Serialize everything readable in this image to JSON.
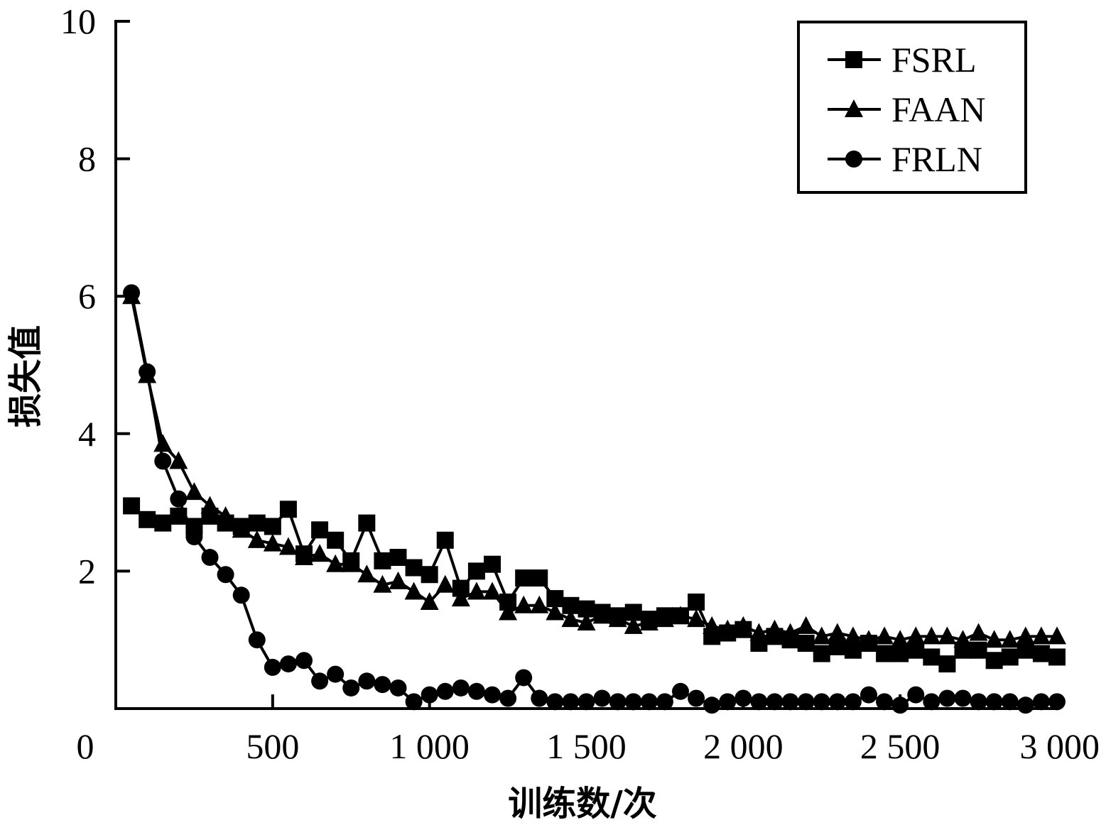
{
  "chart_data": {
    "type": "line",
    "title": "",
    "xlabel": "训练数/次",
    "ylabel": "损失值",
    "xlim": [
      0,
      3000
    ],
    "ylim": [
      0,
      10
    ],
    "x_origin_label": "0",
    "x_ticks": [
      500,
      1000,
      1500,
      2000,
      2500,
      3000
    ],
    "x_tick_labels": [
      "500",
      "1 000",
      "1 500",
      "2 000",
      "2 500",
      "3 000"
    ],
    "y_ticks": [
      2,
      4,
      6,
      8,
      10
    ],
    "y_tick_labels": [
      "2",
      "4",
      "6",
      "8",
      "10"
    ],
    "grid": false,
    "legend_position": "top-right",
    "x": [
      50,
      100,
      150,
      200,
      250,
      300,
      350,
      400,
      450,
      500,
      550,
      600,
      650,
      700,
      750,
      800,
      850,
      900,
      950,
      1000,
      1050,
      1100,
      1150,
      1200,
      1250,
      1300,
      1350,
      1400,
      1450,
      1500,
      1550,
      1600,
      1650,
      1700,
      1750,
      1800,
      1850,
      1900,
      1950,
      2000,
      2050,
      2100,
      2150,
      2200,
      2250,
      2300,
      2350,
      2400,
      2450,
      2500,
      2550,
      2600,
      2650,
      2700,
      2750,
      2800,
      2850,
      2900,
      2950,
      3000
    ],
    "series": [
      {
        "name": "FSRL",
        "marker": "square",
        "values": [
          2.95,
          2.75,
          2.7,
          2.8,
          2.65,
          2.8,
          2.7,
          2.65,
          2.7,
          2.65,
          2.9,
          2.25,
          2.6,
          2.45,
          2.15,
          2.7,
          2.15,
          2.2,
          2.05,
          1.95,
          2.45,
          1.75,
          2.0,
          2.1,
          1.55,
          1.9,
          1.9,
          1.6,
          1.5,
          1.45,
          1.4,
          1.35,
          1.4,
          1.3,
          1.35,
          1.35,
          1.55,
          1.05,
          1.1,
          1.15,
          0.95,
          1.05,
          1.0,
          0.95,
          0.8,
          0.9,
          0.85,
          0.95,
          0.8,
          0.8,
          0.85,
          0.75,
          0.65,
          0.85,
          0.85,
          0.7,
          0.75,
          0.85,
          0.8,
          0.75
        ]
      },
      {
        "name": "FAAN",
        "marker": "triangle",
        "values": [
          6.0,
          4.85,
          3.85,
          3.6,
          3.15,
          2.95,
          2.8,
          2.6,
          2.45,
          2.4,
          2.35,
          2.2,
          2.25,
          2.1,
          2.1,
          1.95,
          1.8,
          1.85,
          1.7,
          1.55,
          1.8,
          1.6,
          1.7,
          1.7,
          1.4,
          1.5,
          1.5,
          1.4,
          1.3,
          1.25,
          1.35,
          1.3,
          1.2,
          1.25,
          1.3,
          1.35,
          1.3,
          1.2,
          1.15,
          1.2,
          1.1,
          1.15,
          1.1,
          1.2,
          1.05,
          1.1,
          1.05,
          1.0,
          1.05,
          1.0,
          1.05,
          1.05,
          1.05,
          1.0,
          1.1,
          1.0,
          1.0,
          1.05,
          1.05,
          1.05
        ]
      },
      {
        "name": "FRLN",
        "marker": "circle",
        "values": [
          6.05,
          4.9,
          3.6,
          3.05,
          2.5,
          2.2,
          1.95,
          1.65,
          1.0,
          0.6,
          0.65,
          0.7,
          0.4,
          0.5,
          0.3,
          0.4,
          0.35,
          0.3,
          0.1,
          0.2,
          0.25,
          0.3,
          0.25,
          0.2,
          0.15,
          0.45,
          0.15,
          0.1,
          0.1,
          0.1,
          0.15,
          0.1,
          0.1,
          0.1,
          0.1,
          0.25,
          0.15,
          0.05,
          0.1,
          0.15,
          0.1,
          0.1,
          0.1,
          0.1,
          0.1,
          0.1,
          0.1,
          0.2,
          0.1,
          0.05,
          0.2,
          0.1,
          0.15,
          0.15,
          0.1,
          0.1,
          0.1,
          0.05,
          0.1,
          0.1
        ]
      }
    ]
  }
}
